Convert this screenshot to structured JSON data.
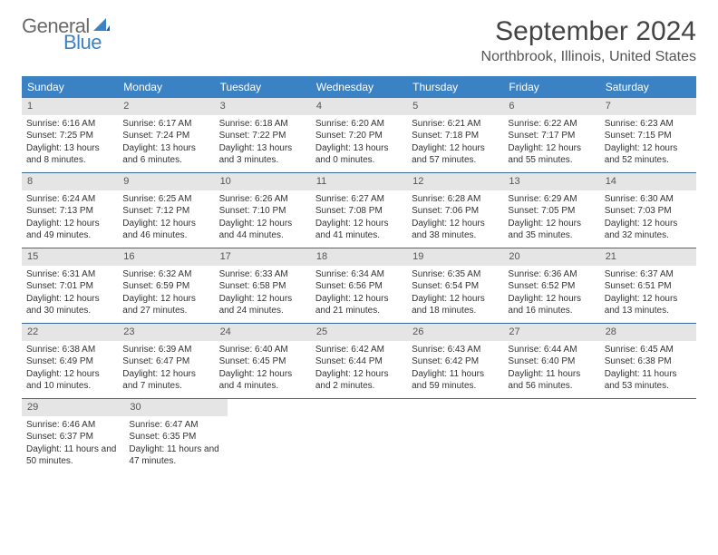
{
  "logo": {
    "text_general": "General",
    "text_blue": "Blue",
    "sail_color": "#3b82c4"
  },
  "title": "September 2024",
  "location": "Northbrook, Illinois, United States",
  "header_bg": "#3b82c4",
  "header_fg": "#ffffff",
  "daynum_bg": "#e5e5e5",
  "week_border": "#3b6a99",
  "day_names": [
    "Sunday",
    "Monday",
    "Tuesday",
    "Wednesday",
    "Thursday",
    "Friday",
    "Saturday"
  ],
  "days": [
    {
      "n": "1",
      "sr": "Sunrise: 6:16 AM",
      "ss": "Sunset: 7:25 PM",
      "dl": "Daylight: 13 hours and 8 minutes."
    },
    {
      "n": "2",
      "sr": "Sunrise: 6:17 AM",
      "ss": "Sunset: 7:24 PM",
      "dl": "Daylight: 13 hours and 6 minutes."
    },
    {
      "n": "3",
      "sr": "Sunrise: 6:18 AM",
      "ss": "Sunset: 7:22 PM",
      "dl": "Daylight: 13 hours and 3 minutes."
    },
    {
      "n": "4",
      "sr": "Sunrise: 6:20 AM",
      "ss": "Sunset: 7:20 PM",
      "dl": "Daylight: 13 hours and 0 minutes."
    },
    {
      "n": "5",
      "sr": "Sunrise: 6:21 AM",
      "ss": "Sunset: 7:18 PM",
      "dl": "Daylight: 12 hours and 57 minutes."
    },
    {
      "n": "6",
      "sr": "Sunrise: 6:22 AM",
      "ss": "Sunset: 7:17 PM",
      "dl": "Daylight: 12 hours and 55 minutes."
    },
    {
      "n": "7",
      "sr": "Sunrise: 6:23 AM",
      "ss": "Sunset: 7:15 PM",
      "dl": "Daylight: 12 hours and 52 minutes."
    },
    {
      "n": "8",
      "sr": "Sunrise: 6:24 AM",
      "ss": "Sunset: 7:13 PM",
      "dl": "Daylight: 12 hours and 49 minutes."
    },
    {
      "n": "9",
      "sr": "Sunrise: 6:25 AM",
      "ss": "Sunset: 7:12 PM",
      "dl": "Daylight: 12 hours and 46 minutes."
    },
    {
      "n": "10",
      "sr": "Sunrise: 6:26 AM",
      "ss": "Sunset: 7:10 PM",
      "dl": "Daylight: 12 hours and 44 minutes."
    },
    {
      "n": "11",
      "sr": "Sunrise: 6:27 AM",
      "ss": "Sunset: 7:08 PM",
      "dl": "Daylight: 12 hours and 41 minutes."
    },
    {
      "n": "12",
      "sr": "Sunrise: 6:28 AM",
      "ss": "Sunset: 7:06 PM",
      "dl": "Daylight: 12 hours and 38 minutes."
    },
    {
      "n": "13",
      "sr": "Sunrise: 6:29 AM",
      "ss": "Sunset: 7:05 PM",
      "dl": "Daylight: 12 hours and 35 minutes."
    },
    {
      "n": "14",
      "sr": "Sunrise: 6:30 AM",
      "ss": "Sunset: 7:03 PM",
      "dl": "Daylight: 12 hours and 32 minutes."
    },
    {
      "n": "15",
      "sr": "Sunrise: 6:31 AM",
      "ss": "Sunset: 7:01 PM",
      "dl": "Daylight: 12 hours and 30 minutes."
    },
    {
      "n": "16",
      "sr": "Sunrise: 6:32 AM",
      "ss": "Sunset: 6:59 PM",
      "dl": "Daylight: 12 hours and 27 minutes."
    },
    {
      "n": "17",
      "sr": "Sunrise: 6:33 AM",
      "ss": "Sunset: 6:58 PM",
      "dl": "Daylight: 12 hours and 24 minutes."
    },
    {
      "n": "18",
      "sr": "Sunrise: 6:34 AM",
      "ss": "Sunset: 6:56 PM",
      "dl": "Daylight: 12 hours and 21 minutes."
    },
    {
      "n": "19",
      "sr": "Sunrise: 6:35 AM",
      "ss": "Sunset: 6:54 PM",
      "dl": "Daylight: 12 hours and 18 minutes."
    },
    {
      "n": "20",
      "sr": "Sunrise: 6:36 AM",
      "ss": "Sunset: 6:52 PM",
      "dl": "Daylight: 12 hours and 16 minutes."
    },
    {
      "n": "21",
      "sr": "Sunrise: 6:37 AM",
      "ss": "Sunset: 6:51 PM",
      "dl": "Daylight: 12 hours and 13 minutes."
    },
    {
      "n": "22",
      "sr": "Sunrise: 6:38 AM",
      "ss": "Sunset: 6:49 PM",
      "dl": "Daylight: 12 hours and 10 minutes."
    },
    {
      "n": "23",
      "sr": "Sunrise: 6:39 AM",
      "ss": "Sunset: 6:47 PM",
      "dl": "Daylight: 12 hours and 7 minutes."
    },
    {
      "n": "24",
      "sr": "Sunrise: 6:40 AM",
      "ss": "Sunset: 6:45 PM",
      "dl": "Daylight: 12 hours and 4 minutes."
    },
    {
      "n": "25",
      "sr": "Sunrise: 6:42 AM",
      "ss": "Sunset: 6:44 PM",
      "dl": "Daylight: 12 hours and 2 minutes."
    },
    {
      "n": "26",
      "sr": "Sunrise: 6:43 AM",
      "ss": "Sunset: 6:42 PM",
      "dl": "Daylight: 11 hours and 59 minutes."
    },
    {
      "n": "27",
      "sr": "Sunrise: 6:44 AM",
      "ss": "Sunset: 6:40 PM",
      "dl": "Daylight: 11 hours and 56 minutes."
    },
    {
      "n": "28",
      "sr": "Sunrise: 6:45 AM",
      "ss": "Sunset: 6:38 PM",
      "dl": "Daylight: 11 hours and 53 minutes."
    },
    {
      "n": "29",
      "sr": "Sunrise: 6:46 AM",
      "ss": "Sunset: 6:37 PM",
      "dl": "Daylight: 11 hours and 50 minutes."
    },
    {
      "n": "30",
      "sr": "Sunrise: 6:47 AM",
      "ss": "Sunset: 6:35 PM",
      "dl": "Daylight: 11 hours and 47 minutes."
    }
  ]
}
